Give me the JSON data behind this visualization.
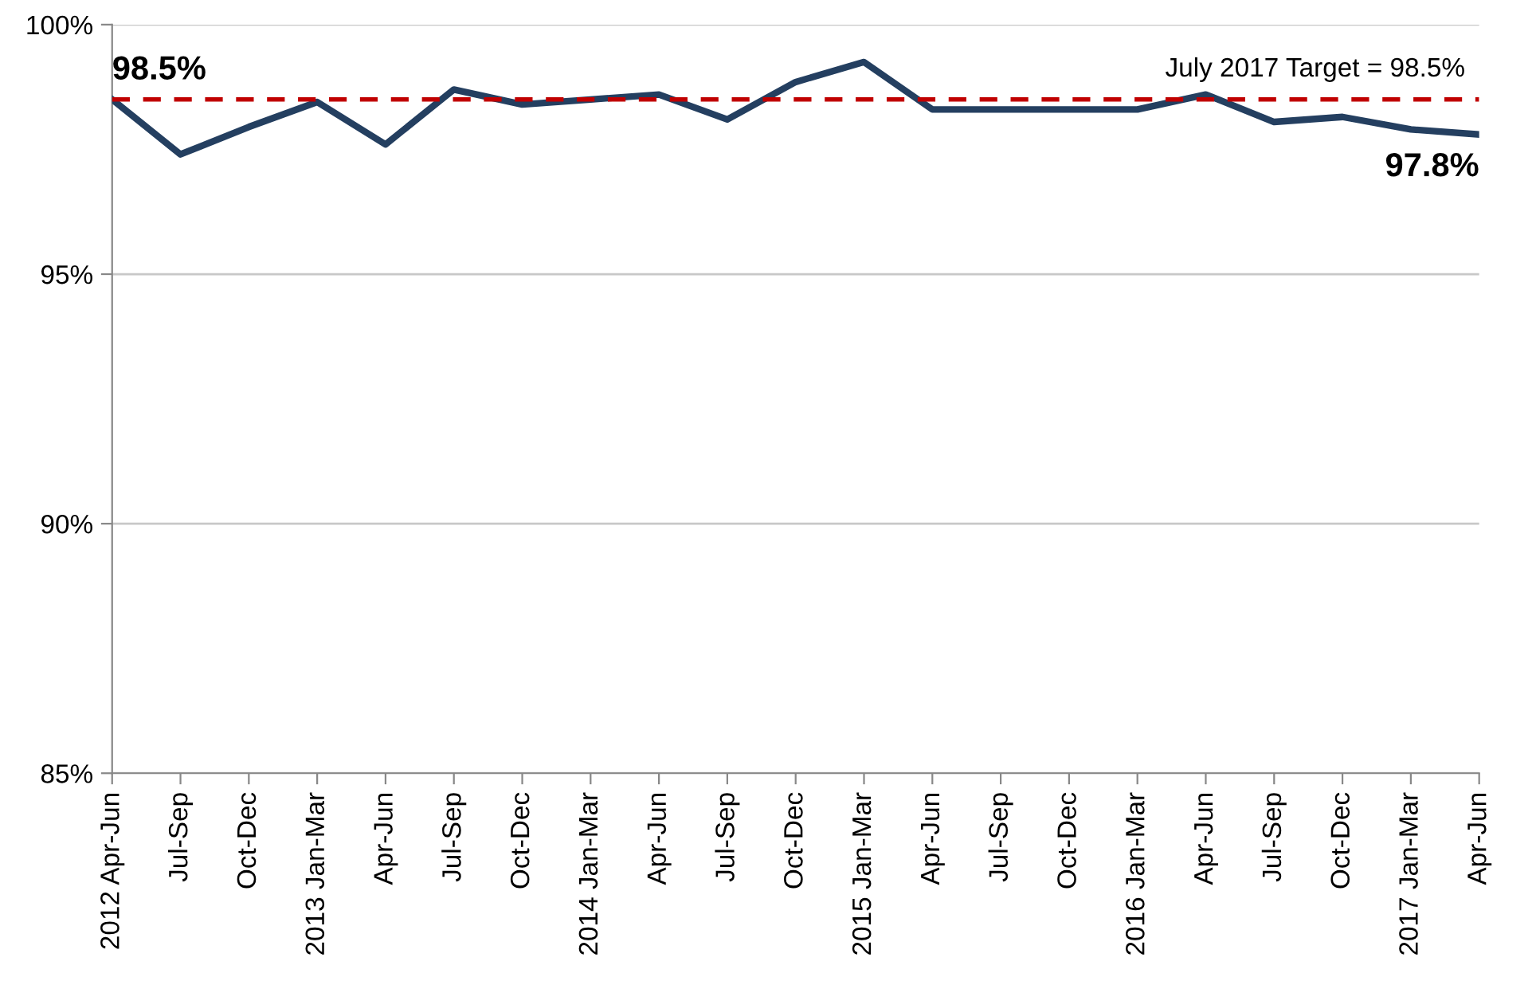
{
  "chart_data": {
    "type": "line",
    "categories": [
      "2012 Apr-Jun",
      "Jul-Sep",
      "Oct-Dec",
      "2013 Jan-Mar",
      "Apr-Jun",
      "Jul-Sep",
      "Oct-Dec",
      "2014 Jan-Mar",
      "Apr-Jun",
      "Jul-Sep",
      "Oct-Dec",
      "2015 Jan-Mar",
      "Apr-Jun",
      "Jul-Sep",
      "Oct-Dec",
      "2016 Jan-Mar",
      "Apr-Jun",
      "Jul-Sep",
      "Oct-Dec",
      "2017 Jan-Mar",
      "Apr-Jun"
    ],
    "series": [
      {
        "color": "#243f60",
        "values": [
          98.5,
          97.4,
          97.95,
          98.45,
          97.6,
          98.7,
          98.4,
          98.5,
          98.6,
          98.1,
          98.85,
          99.25,
          98.3,
          98.3,
          98.3,
          98.3,
          98.6,
          98.05,
          98.15,
          97.9,
          97.8
        ]
      }
    ],
    "ylim": [
      85,
      100
    ],
    "yticks": [
      {
        "value": 85,
        "label": "85%"
      },
      {
        "value": 90,
        "label": "90%"
      },
      {
        "value": 95,
        "label": "95%"
      },
      {
        "value": 100,
        "label": "100%"
      }
    ],
    "grid": "y",
    "legend": false,
    "marker": "none",
    "line_style": "solid",
    "ref_lines": [
      {
        "axis": "y",
        "value": 98.5,
        "label": "July 2017 Target = 98.5%",
        "color": "#c00000",
        "line_style": "dashed"
      }
    ],
    "annotations": [
      {
        "text": "98.5%",
        "x": "2012 Apr-Jun",
        "y": 98.5
      },
      "97.8%"
    ]
  }
}
